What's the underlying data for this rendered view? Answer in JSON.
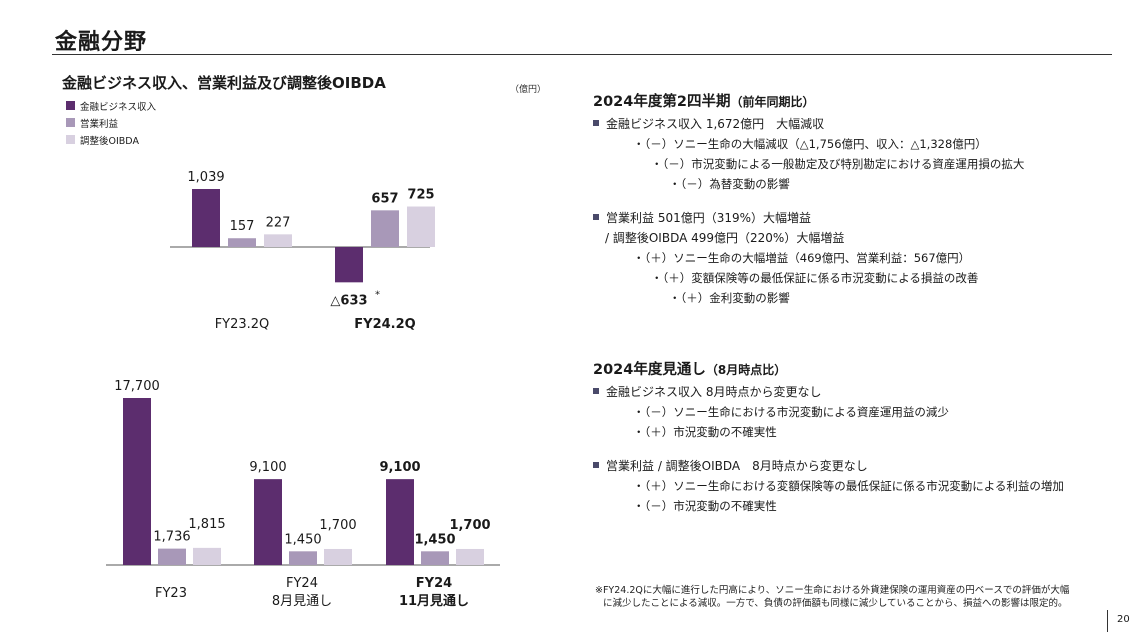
{
  "header": {
    "title": "金融分野"
  },
  "chart_title": "金融ビジネス収入、営業利益及び調整後OIBDA",
  "unit": "（億円）",
  "colors": {
    "revenue": "#5c2d6e",
    "operating": "#a898b8",
    "oibda": "#d8d0e0"
  },
  "chart_data": [
    {
      "type": "bar",
      "categories": [
        "FY23.2Q",
        "FY24.2Q"
      ],
      "legend": [
        "金融ビジネス収入",
        "営業利益",
        "調整後OIBDA"
      ],
      "series": [
        {
          "name": "金融ビジネス収入",
          "values": [
            1039,
            -633
          ],
          "labels": [
            "1,039",
            "△633"
          ]
        },
        {
          "name": "営業利益",
          "values": [
            157,
            657
          ],
          "labels": [
            "157",
            "657"
          ]
        },
        {
          "name": "調整後OIBDA",
          "values": [
            227,
            725
          ],
          "labels": [
            "227",
            "725"
          ]
        }
      ],
      "annotation": "*",
      "bold_category": 1
    },
    {
      "type": "bar",
      "categories": [
        "FY23",
        "FY24\n8月見通し",
        "FY24\n11月見通し"
      ],
      "series": [
        {
          "name": "金融ビジネス収入",
          "values": [
            17700,
            9100,
            9100
          ],
          "labels": [
            "17,700",
            "9,100",
            "9,100"
          ]
        },
        {
          "name": "営業利益",
          "values": [
            1736,
            1450,
            1450
          ],
          "labels": [
            "1,736",
            "1,450",
            "1,450"
          ]
        },
        {
          "name": "調整後OIBDA",
          "values": [
            1815,
            1700,
            1700
          ],
          "labels": [
            "1,815",
            "1,700",
            "1,700"
          ]
        }
      ],
      "bold_category": 2
    }
  ],
  "q2": {
    "heading": "2024年度第2四半期",
    "heading_sub": "（前年同期比）",
    "b1": "金融ビジネス収入 1,672億円　大幅減収",
    "b1_l1": "・（－）ソニー生命の大幅減収（△1,756億円、収入：△1,328億円）",
    "b1_l2": "・（－）市況変動による一般勘定及び特別勘定における資産運用損の拡大",
    "b1_l3": "・（－）為替変動の影響",
    "b2": "営業利益 501億円（319%）大幅増益",
    "b2_sub": "/ 調整後OIBDA 499億円（220%）大幅増益",
    "b2_l1": "・（＋）ソニー生命の大幅増益（469億円、営業利益：567億円）",
    "b2_l2": "・（＋）変額保険等の最低保証に係る市況変動による損益の改善",
    "b2_l3": "・（＋）金利変動の影響"
  },
  "fy": {
    "heading": "2024年度見通し",
    "heading_sub": "（8月時点比）",
    "b1": "金融ビジネス収入 8月時点から変更なし",
    "b1_l1": "・（－）ソニー生命における市況変動による資産運用益の減少",
    "b1_l2": "・（＋）市況変動の不確実性",
    "b2": "営業利益 / 調整後OIBDA　8月時点から変更なし",
    "b2_l1": "・（＋）ソニー生命における変額保険等の最低保証に係る市況変動による利益の増加",
    "b2_l2": "・（－）市況変動の不確実性"
  },
  "footnote": {
    "line1": "※FY24.2Qに大幅に進行した円高により、ソニー生命における外貨建保険の運用資産の円ベースでの評価が大幅",
    "line2": "に減少したことによる減収。一方で、負債の評価額も同様に減少していることから、損益への影響は限定的。"
  },
  "page_number": "20"
}
